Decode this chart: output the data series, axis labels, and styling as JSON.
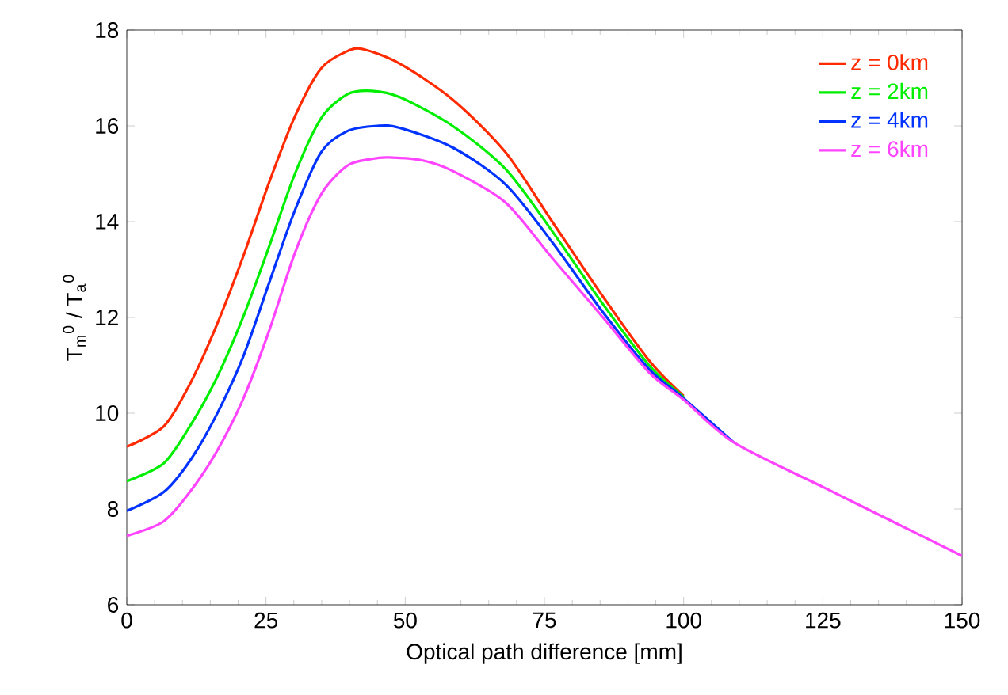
{
  "chart_data": {
    "type": "line",
    "xlabel": "Optical path difference [mm]",
    "ylabel": "T$_{m}$$^{0}$ / T$_{a}$$^{0}$",
    "xlim": [
      0,
      150
    ],
    "ylim": [
      6,
      18
    ],
    "xticks": [
      0,
      25,
      50,
      75,
      100,
      125,
      150
    ],
    "yticks": [
      6,
      8,
      10,
      12,
      14,
      16,
      18
    ],
    "legend": "top right",
    "marker": "none",
    "line_style": "solid",
    "grid": false,
    "series": [
      {
        "name": "z = 0km",
        "color": "#ff2a00",
        "x": [
          0,
          6.6,
          11.3,
          16,
          20.8,
          25.5,
          30.2,
          34.9,
          39.6,
          42.5,
          49,
          58.5,
          68,
          76.4,
          85.3,
          93.8,
          100
        ],
        "values": [
          9.3,
          9.72,
          10.6,
          11.8,
          13.24,
          14.8,
          16.2,
          17.2,
          17.56,
          17.6,
          17.3,
          16.55,
          15.45,
          14.0,
          12.47,
          11.1,
          10.36
        ]
      },
      {
        "name": "z = 2km",
        "color": "#00ee00",
        "x": [
          0,
          6.6,
          11.3,
          16,
          20.8,
          25.5,
          30.2,
          34.9,
          39.6,
          44,
          49,
          58.5,
          68,
          76.4,
          85.3,
          93.8,
          100
        ],
        "values": [
          8.58,
          8.95,
          9.72,
          10.7,
          11.98,
          13.46,
          15.0,
          16.16,
          16.66,
          16.73,
          16.6,
          16.0,
          15.1,
          13.8,
          12.31,
          11.0,
          10.34
        ]
      },
      {
        "name": "z = 4km",
        "color": "#0033ff",
        "x": [
          0,
          6.6,
          11.3,
          16,
          20.8,
          25.5,
          30.2,
          34.9,
          39.6,
          45,
          49,
          58.5,
          68,
          76.4,
          85.3,
          93.8,
          100,
          109
        ],
        "values": [
          7.96,
          8.35,
          9.0,
          9.94,
          11.15,
          12.7,
          14.24,
          15.45,
          15.89,
          16.0,
          15.96,
          15.55,
          14.78,
          13.57,
          12.14,
          10.92,
          10.31,
          9.39
        ]
      },
      {
        "name": "z = 6km",
        "color": "#ff44ff",
        "x": [
          0,
          6.6,
          11.3,
          16,
          20.8,
          25.5,
          30.2,
          34.9,
          39.6,
          44,
          47,
          53,
          58.5,
          68,
          76.4,
          85.3,
          93.8,
          100,
          109,
          125,
          137.5,
          150
        ],
        "values": [
          7.44,
          7.74,
          8.35,
          9.17,
          10.27,
          11.7,
          13.35,
          14.57,
          15.17,
          15.31,
          15.34,
          15.28,
          15.06,
          14.4,
          13.24,
          12.03,
          10.85,
          10.28,
          9.39,
          8.46,
          7.74,
          7.02
        ]
      }
    ]
  }
}
